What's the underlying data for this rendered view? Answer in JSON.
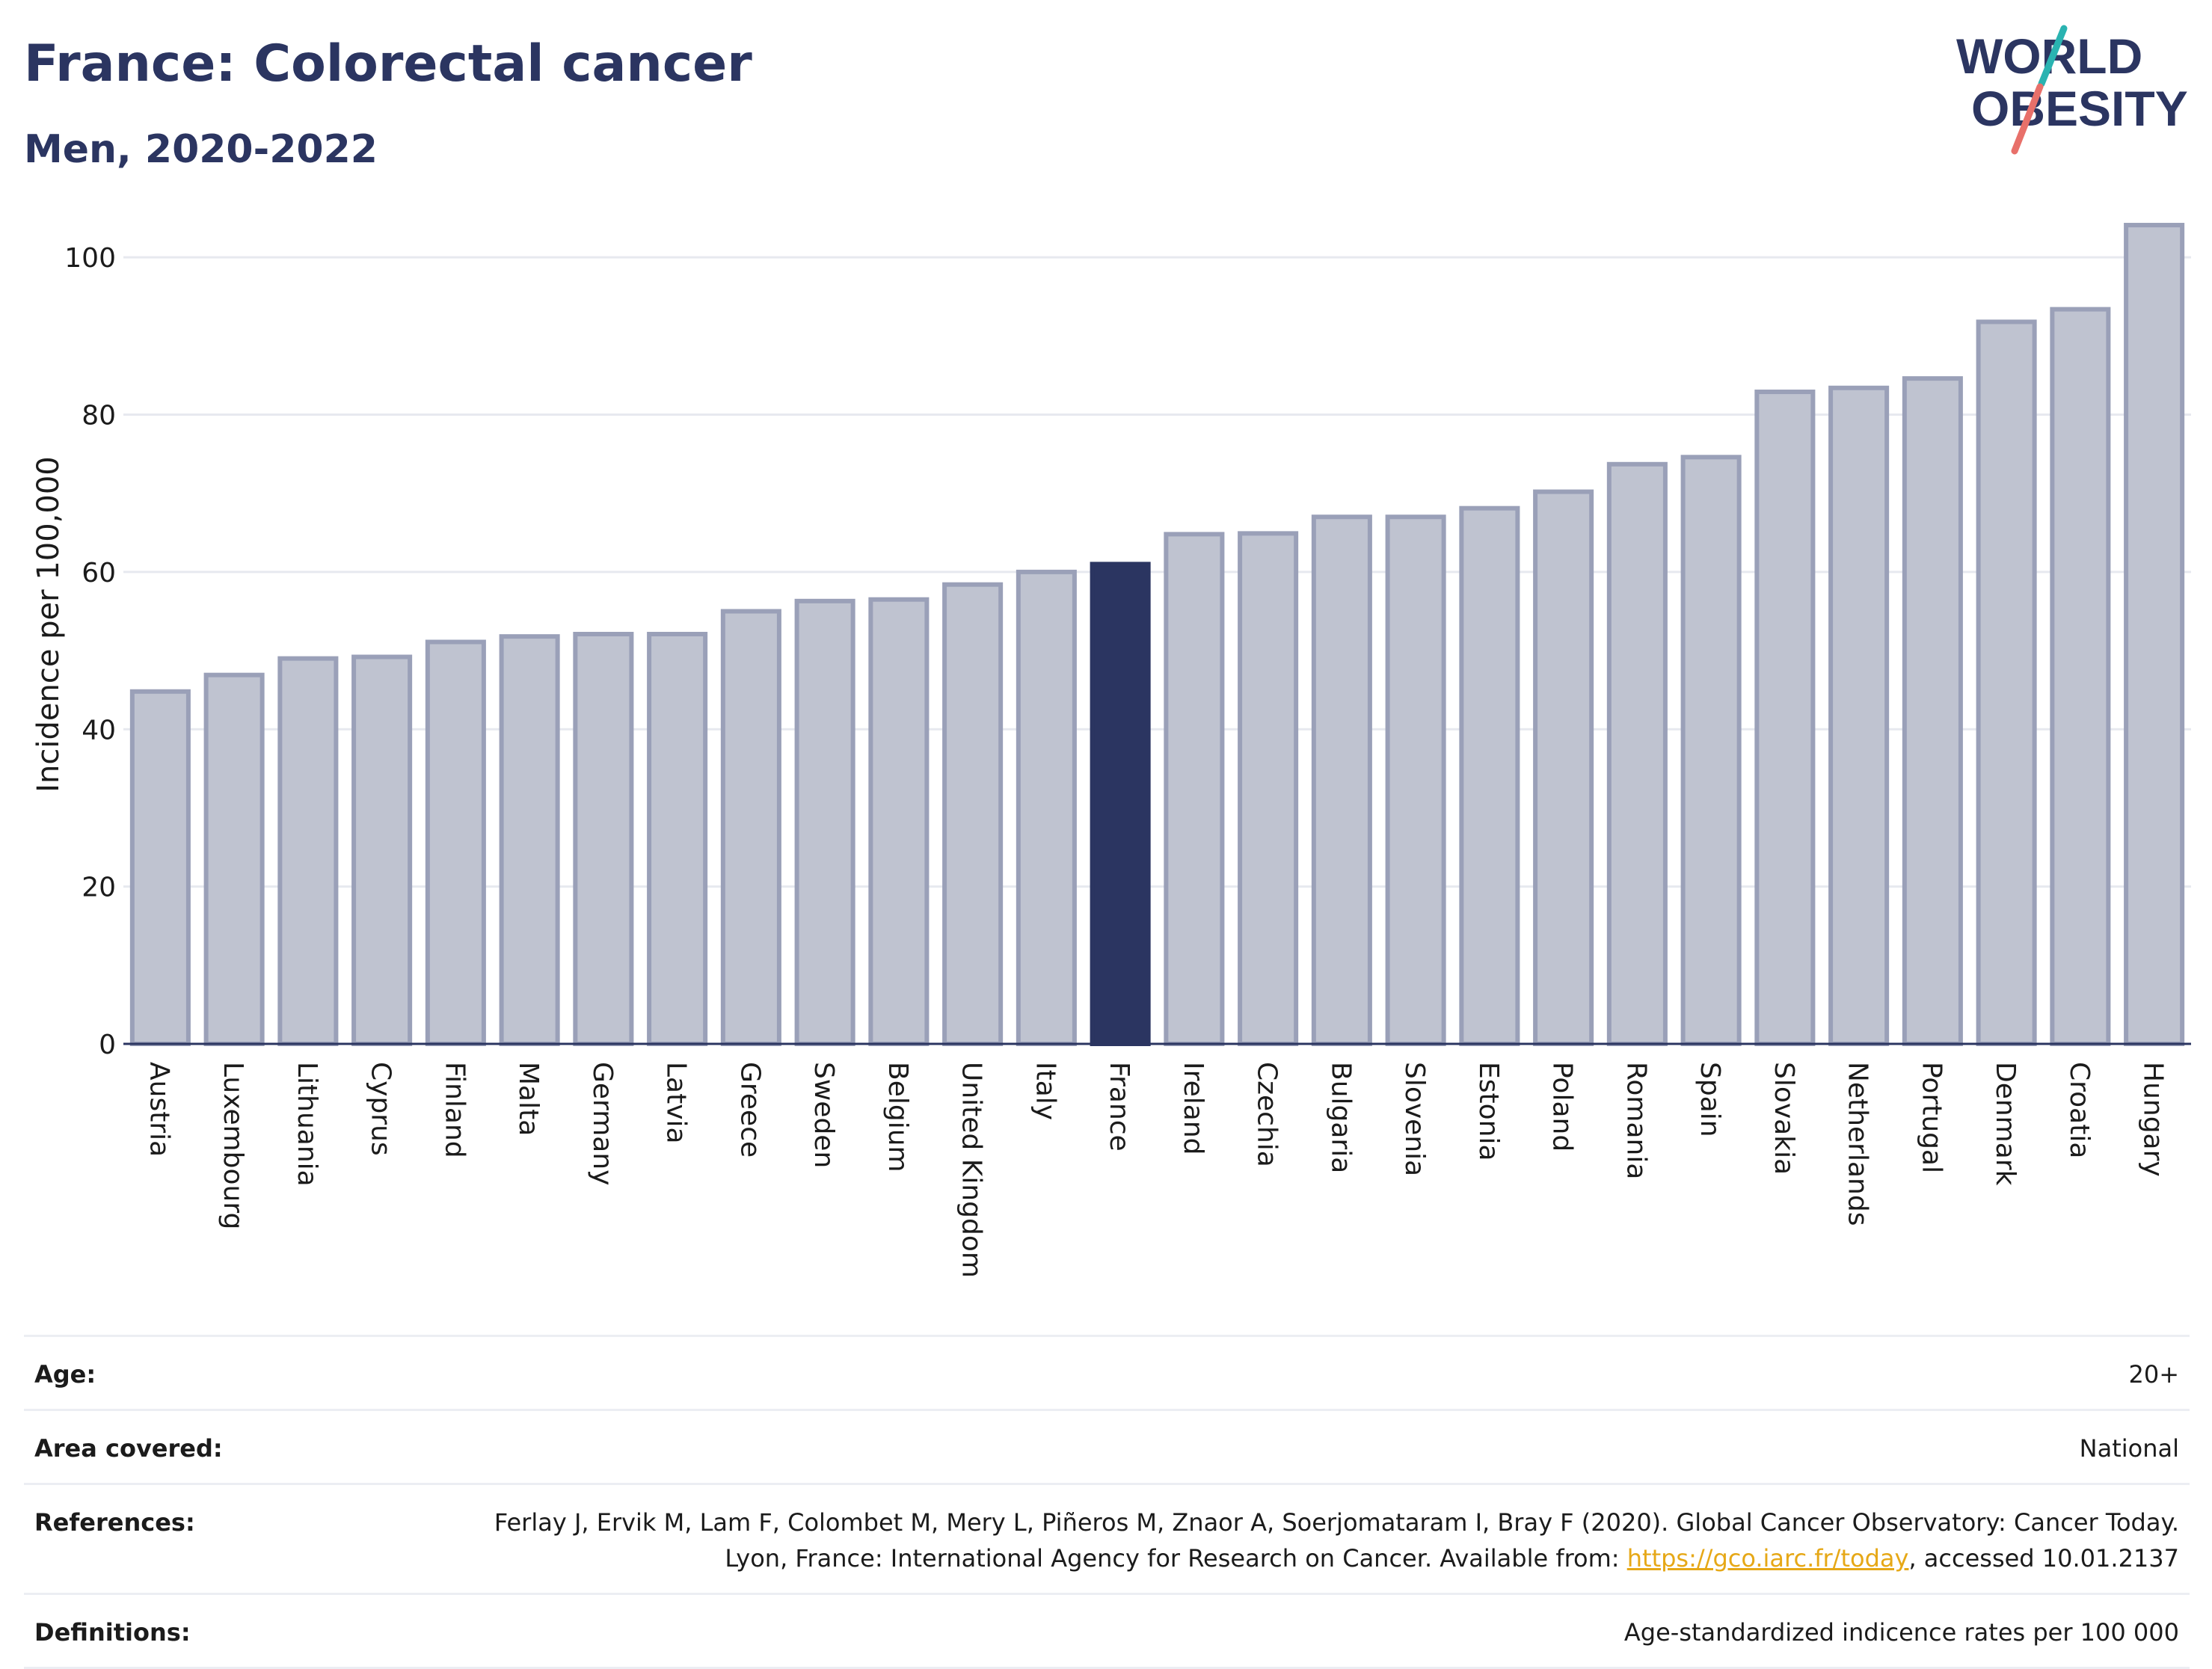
{
  "header": {
    "title": "France: Colorectal cancer",
    "subtitle": "Men, 2020-2022"
  },
  "logo": {
    "line1": "WORLD",
    "line2": "OBESITY"
  },
  "colors": {
    "highlight": "#2b3561",
    "bar_fill": "#bfc3d0",
    "bar_stroke": "#9aa0b8",
    "text_dark": "#2b3561",
    "link": "#e6a817",
    "logo_teal": "#2ab3b1",
    "logo_coral": "#e8706a"
  },
  "chart_data": {
    "type": "bar",
    "ylabel": "Incidence per 100,000",
    "xlabel": "",
    "ylim": [
      0,
      108
    ],
    "yticks": [
      0,
      20,
      40,
      60,
      80,
      100
    ],
    "grid": true,
    "highlight": "France",
    "categories": [
      "Austria",
      "Luxembourg",
      "Lithuania",
      "Cyprus",
      "Finland",
      "Malta",
      "Germany",
      "Latvia",
      "Greece",
      "Sweden",
      "Belgium",
      "United Kingdom",
      "Italy",
      "France",
      "Ireland",
      "Czechia",
      "Bulgaria",
      "Slovenia",
      "Estonia",
      "Poland",
      "Romania",
      "Spain",
      "Slovakia",
      "Netherlands",
      "Portugal",
      "Denmark",
      "Croatia",
      "Hungary"
    ],
    "values": [
      44.8,
      46.9,
      49.0,
      49.2,
      51.1,
      51.8,
      52.1,
      52.1,
      55.0,
      56.3,
      56.5,
      58.4,
      60.0,
      61.0,
      64.8,
      64.9,
      67.0,
      67.0,
      68.1,
      70.2,
      73.7,
      74.6,
      82.9,
      83.4,
      84.6,
      91.8,
      93.4,
      104.1
    ]
  },
  "info": {
    "age_label": "Age:",
    "age_value": "20+",
    "area_label": "Area covered:",
    "area_value": "National",
    "references_label": "References:",
    "references_text_1": "Ferlay J, Ervik M, Lam F, Colombet M, Mery L, Piñeros M, Znaor A, Soerjomataram I, Bray F (2020). Global Cancer Observatory: Cancer Today. Lyon, France: International Agency for Research on Cancer. Available from: ",
    "references_link": "https://gco.iarc.fr/today",
    "references_text_2": ", accessed 10.01.2137",
    "definitions_label": "Definitions:",
    "definitions_value": "Age-standardized indicence rates per 100 000"
  }
}
